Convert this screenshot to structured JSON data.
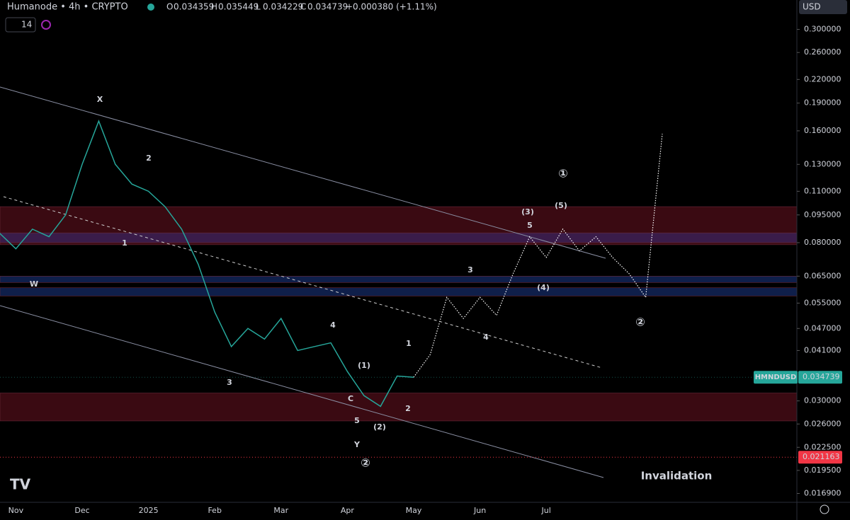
{
  "header": {
    "symbol": "Humanode • 4h • CRYPTO",
    "ohlc": [
      {
        "key": "O",
        "value": "0.034359"
      },
      {
        "key": "H",
        "value": "0.035449"
      },
      {
        "key": "L",
        "value": "0.034229"
      },
      {
        "key": "C",
        "value": "0.034739"
      }
    ],
    "change": "+0.000380 (+1.11%)"
  },
  "toolbar": {
    "interval": "14",
    "currency": "USD"
  },
  "chart_data": {
    "type": "line",
    "log_scale": true,
    "categories": [
      null,
      "Nov",
      null,
      null,
      null,
      "Dec",
      null,
      null,
      null,
      "2025",
      null,
      null,
      null,
      "Feb",
      null,
      null,
      null,
      "Mar",
      null,
      null,
      null,
      "Apr",
      null,
      null,
      null,
      "May",
      null,
      null,
      null,
      "Jun",
      null,
      null,
      null,
      "Jul",
      null,
      null,
      null,
      null,
      null,
      null,
      null,
      null,
      null,
      null,
      null,
      null,
      null,
      null
    ],
    "series": [
      {
        "color": "#26a69a",
        "values": [
          0.085,
          0.077,
          0.087,
          0.083,
          0.095,
          0.13,
          0.17,
          0.13,
          0.115,
          0.11,
          0.1,
          0.087,
          0.07,
          0.052,
          0.042,
          0.047,
          0.044,
          0.05,
          0.041,
          0.042,
          0.043,
          0.036,
          0.031,
          0.029,
          0.035,
          0.034739,
          null,
          null,
          null,
          null,
          null,
          null,
          null,
          null,
          null,
          null,
          null,
          null,
          null,
          null,
          null,
          null,
          null,
          null,
          null,
          null,
          null,
          null
        ]
      },
      {
        "color": "#ffffff",
        "style": "dotted",
        "values": [
          null,
          null,
          null,
          null,
          null,
          null,
          null,
          null,
          null,
          null,
          null,
          null,
          null,
          null,
          null,
          null,
          null,
          null,
          null,
          null,
          null,
          null,
          null,
          null,
          null,
          0.034739,
          0.04,
          0.057,
          0.05,
          0.057,
          0.051,
          0.066,
          0.083,
          0.073,
          0.087,
          0.076,
          0.083,
          0.073,
          0.066,
          0.057,
          0.157,
          null,
          null,
          null,
          null,
          null,
          null,
          null
        ]
      }
    ],
    "ylim": [
      0.016,
      0.36
    ],
    "yticks": [
      {
        "value": 0.3,
        "label": "0.300000"
      },
      {
        "value": 0.26,
        "label": "0.260000"
      },
      {
        "value": 0.22,
        "label": "0.220000"
      },
      {
        "value": 0.19,
        "label": "0.190000"
      },
      {
        "value": 0.16,
        "label": "0.160000"
      },
      {
        "value": 0.13,
        "label": "0.130000"
      },
      {
        "value": 0.11,
        "label": "0.110000"
      },
      {
        "value": 0.095,
        "label": "0.095000"
      },
      {
        "value": 0.08,
        "label": "0.080000"
      },
      {
        "value": 0.065,
        "label": "0.065000"
      },
      {
        "value": 0.055,
        "label": "0.055000"
      },
      {
        "value": 0.047,
        "label": "0.047000"
      },
      {
        "value": 0.041,
        "label": "0.041000"
      },
      {
        "value": 0.03,
        "label": "0.030000"
      },
      {
        "value": 0.026,
        "label": "0.026000"
      },
      {
        "value": 0.0225,
        "label": "0.022500"
      },
      {
        "value": 0.0195,
        "label": "0.019500"
      },
      {
        "value": 0.0169,
        "label": "0.016900"
      }
    ],
    "zones": [
      {
        "low": 0.079,
        "high": 0.1,
        "color": "#3a0a12"
      },
      {
        "low": 0.08,
        "high": 0.085,
        "color": "#3a1c4a"
      },
      {
        "low": 0.0625,
        "high": 0.065,
        "color": "#0f1f4a"
      },
      {
        "low": 0.0575,
        "high": 0.0605,
        "color": "#0f1f4a"
      },
      {
        "low": 0.0265,
        "high": 0.0315,
        "color": "#3a0a12"
      }
    ],
    "last_price": {
      "label": "HMNDUSD",
      "value": 0.034739
    },
    "invalidation": {
      "value": 0.021163
    },
    "annotations": [
      "X",
      "2",
      "1",
      "W",
      "3",
      "4",
      "5",
      "Y",
      "②",
      "C",
      "(1)",
      "(2)",
      "1",
      "2",
      "3",
      "4",
      "5",
      "(3)",
      "(4)",
      "(5)",
      "①",
      "②",
      "Invalidation"
    ]
  }
}
